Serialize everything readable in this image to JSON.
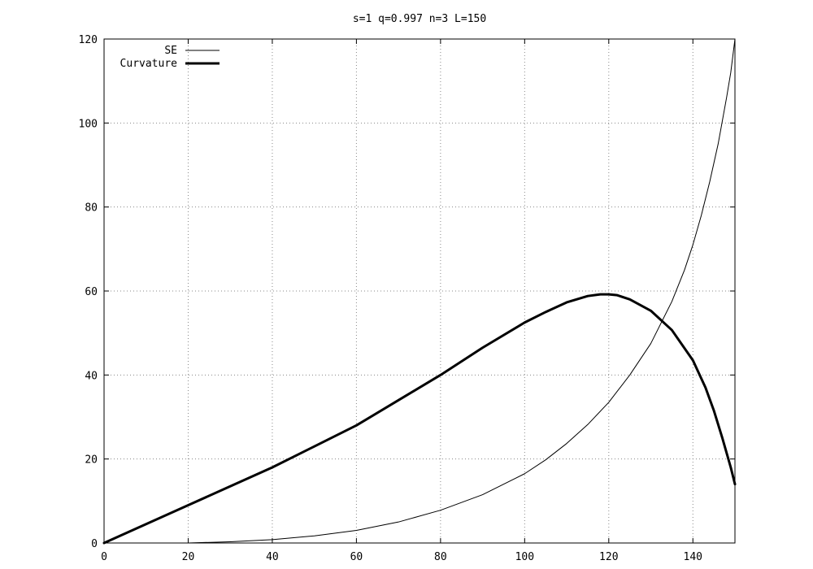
{
  "chart_data": {
    "type": "line",
    "title": "s=1 q=0.997 n=3 L=150",
    "xlabel": "",
    "ylabel": "",
    "xlim": [
      0,
      150
    ],
    "ylim": [
      0,
      120
    ],
    "xticks": [
      "0",
      "20",
      "40",
      "60",
      "80",
      "100",
      "120",
      "140"
    ],
    "yticks": [
      "0",
      "20",
      "40",
      "60",
      "80",
      "100",
      "120"
    ],
    "grid": true,
    "legend_position": "top-left",
    "series": [
      {
        "name": "SE",
        "color": "#000000",
        "style": "thin",
        "x": [
          0,
          10,
          20,
          30,
          40,
          50,
          60,
          70,
          80,
          90,
          100,
          105,
          110,
          115,
          120,
          125,
          130,
          135,
          138,
          140,
          142,
          144,
          146,
          148,
          149,
          150
        ],
        "y": [
          0,
          0,
          0,
          0.3,
          0.8,
          1.7,
          3,
          5,
          7.8,
          11.5,
          16.5,
          19.8,
          23.7,
          28.2,
          33.5,
          40,
          47.5,
          57.5,
          65,
          71,
          78,
          86,
          95,
          106,
          112,
          120
        ]
      },
      {
        "name": "Curvature",
        "color": "#000000",
        "style": "thick",
        "x": [
          0,
          10,
          20,
          30,
          40,
          50,
          60,
          70,
          80,
          90,
          100,
          105,
          110,
          115,
          118,
          120,
          122,
          125,
          130,
          135,
          140,
          143,
          145,
          147,
          149,
          150
        ],
        "y": [
          0,
          4.5,
          9,
          13.5,
          18,
          23,
          28,
          34,
          40,
          46.5,
          52.5,
          55,
          57.3,
          58.8,
          59.2,
          59.2,
          59,
          58,
          55.3,
          50.7,
          43.5,
          37,
          31.5,
          25,
          18,
          14
        ]
      }
    ]
  }
}
